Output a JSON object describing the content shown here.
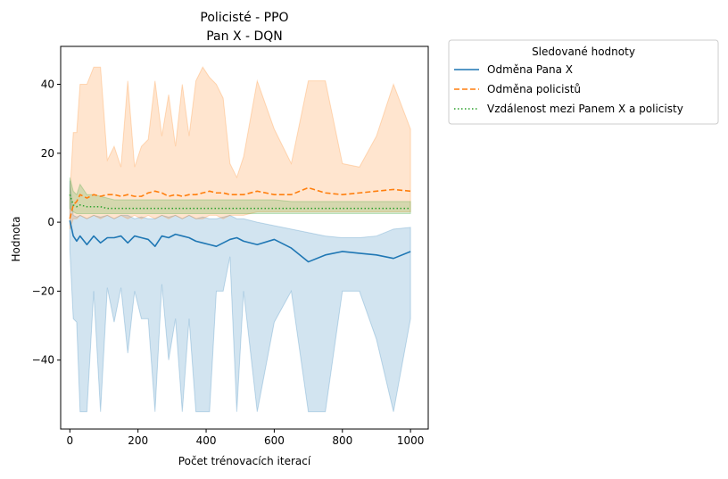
{
  "chart_data": {
    "type": "line",
    "title": "Policisté - PPO",
    "subtitle": "Pan X - DQN",
    "xlabel": "Počet trénovacích iterací",
    "ylabel": "Hodnota",
    "xlim": [
      -27,
      1052
    ],
    "ylim": [
      -60,
      51
    ],
    "xticks": [
      0,
      200,
      400,
      600,
      800,
      1000
    ],
    "yticks": [
      -40,
      -20,
      0,
      20,
      40
    ],
    "grid": false,
    "legend": {
      "title": "Sledované hodnoty",
      "placement": "outside-top-right"
    },
    "series": [
      {
        "name": "Odměna Pana X",
        "color": "#1f77b4",
        "style": "solid",
        "x": [
          0,
          10,
          20,
          30,
          50,
          70,
          90,
          110,
          130,
          150,
          170,
          190,
          210,
          230,
          250,
          270,
          290,
          310,
          330,
          350,
          370,
          390,
          410,
          430,
          450,
          470,
          490,
          510,
          550,
          600,
          650,
          700,
          750,
          800,
          850,
          900,
          950,
          1000
        ],
        "values": [
          0.5,
          -4,
          -5.5,
          -4,
          -6.5,
          -4,
          -6,
          -4.5,
          -4.5,
          -4,
          -6,
          -4,
          -4.5,
          -5,
          -7,
          -4,
          -4.5,
          -3.5,
          -4,
          -4.5,
          -5.5,
          -6,
          -6.5,
          -7,
          -6,
          -5,
          -4.5,
          -5.5,
          -6.5,
          -5,
          -7.5,
          -11.5,
          -9.5,
          -8.5,
          -9,
          -9.5,
          -10.5,
          -8.5
        ],
        "upper": [
          12,
          2,
          1.5,
          2,
          1,
          2,
          1.5,
          2,
          1,
          2,
          2,
          1,
          1.5,
          1,
          1,
          2,
          1.5,
          2,
          1,
          2,
          1,
          1.5,
          1,
          1,
          1.5,
          2,
          1,
          1,
          0,
          -1,
          -2,
          -3,
          -4,
          -4.5,
          -4.5,
          -4,
          -2,
          -1.5
        ],
        "lower": [
          -8,
          -28,
          -29,
          -55,
          -55,
          -20,
          -55,
          -19,
          -29,
          -19,
          -38,
          -20,
          -28,
          -28,
          -55,
          -18,
          -40,
          -28,
          -55,
          -28,
          -55,
          -55,
          -55,
          -20,
          -20,
          -10,
          -55,
          -20,
          -55,
          -29,
          -20,
          -55,
          -55,
          -20,
          -20,
          -34,
          -55,
          -28
        ]
      },
      {
        "name": "Odměna policistů",
        "color": "#ff7f0e",
        "style": "dashed",
        "x": [
          0,
          10,
          20,
          30,
          50,
          70,
          90,
          110,
          130,
          150,
          170,
          190,
          210,
          230,
          250,
          270,
          290,
          310,
          330,
          350,
          370,
          390,
          410,
          430,
          450,
          470,
          490,
          510,
          550,
          600,
          650,
          700,
          750,
          800,
          850,
          900,
          950,
          1000
        ],
        "values": [
          1,
          5,
          6,
          8,
          7,
          8,
          7.5,
          8,
          8,
          7.5,
          8,
          7.5,
          7.5,
          8.5,
          9,
          8.5,
          7.5,
          8,
          7.5,
          8,
          8,
          8.5,
          9,
          8.5,
          8.5,
          8,
          8,
          8,
          9,
          8,
          8,
          10,
          8.5,
          8,
          8.5,
          9,
          9.5,
          9
        ],
        "upper": [
          8,
          26,
          26,
          40,
          40,
          45,
          45,
          18,
          22,
          16,
          41,
          16,
          22,
          24,
          41,
          25,
          37,
          22,
          40,
          25,
          41,
          45,
          42,
          40,
          36,
          17,
          13,
          19,
          41,
          27,
          17,
          41,
          41,
          17,
          16,
          25,
          40,
          27
        ],
        "lower": [
          -2,
          1,
          1,
          2,
          1,
          2,
          1,
          2,
          1,
          2,
          1,
          2,
          1,
          2,
          1,
          2,
          1,
          2,
          1,
          2,
          1,
          1,
          2,
          2,
          1,
          2,
          2,
          2,
          3,
          3,
          3,
          3,
          3,
          3,
          3,
          3,
          3,
          3
        ]
      },
      {
        "name": "Vzdálenost mezi Panem X a policisty",
        "color": "#2ca02c",
        "style": "dotted",
        "x": [
          0,
          10,
          20,
          30,
          50,
          70,
          90,
          110,
          130,
          150,
          170,
          190,
          210,
          230,
          250,
          270,
          290,
          310,
          330,
          350,
          370,
          390,
          410,
          430,
          450,
          470,
          490,
          510,
          550,
          600,
          650,
          700,
          750,
          800,
          850,
          900,
          950,
          1000
        ],
        "values": [
          8,
          5,
          4.5,
          5,
          4.5,
          4.5,
          4.5,
          4,
          4,
          4,
          4,
          4,
          4,
          4,
          4,
          4,
          4,
          4,
          4,
          4,
          4,
          4,
          4,
          4,
          4,
          4,
          4,
          4,
          4,
          4,
          4,
          4,
          4,
          4,
          4,
          4,
          4,
          4
        ],
        "upper": [
          13,
          9,
          8,
          11,
          8,
          8,
          7.5,
          7,
          6.5,
          6.5,
          6.5,
          6.5,
          6.5,
          6.5,
          6.5,
          6.5,
          6.5,
          6.5,
          6.5,
          6.5,
          6.5,
          6.5,
          6.5,
          6.5,
          6.5,
          6.5,
          6.5,
          6.5,
          6.5,
          6.5,
          6,
          6,
          6,
          6,
          6,
          6,
          6,
          6
        ],
        "lower": [
          4,
          3,
          2.5,
          2.5,
          2.5,
          2.5,
          2.5,
          2.5,
          2.5,
          2.5,
          2.5,
          2.5,
          2.5,
          2.5,
          2.5,
          2.5,
          2.5,
          2.5,
          2.5,
          2.5,
          2.5,
          2.5,
          2.5,
          2.5,
          2.5,
          2.5,
          2.5,
          2.5,
          2.5,
          2.5,
          2.5,
          2.5,
          2.5,
          2.5,
          2.5,
          2.5,
          2.5,
          2.5
        ]
      }
    ]
  }
}
